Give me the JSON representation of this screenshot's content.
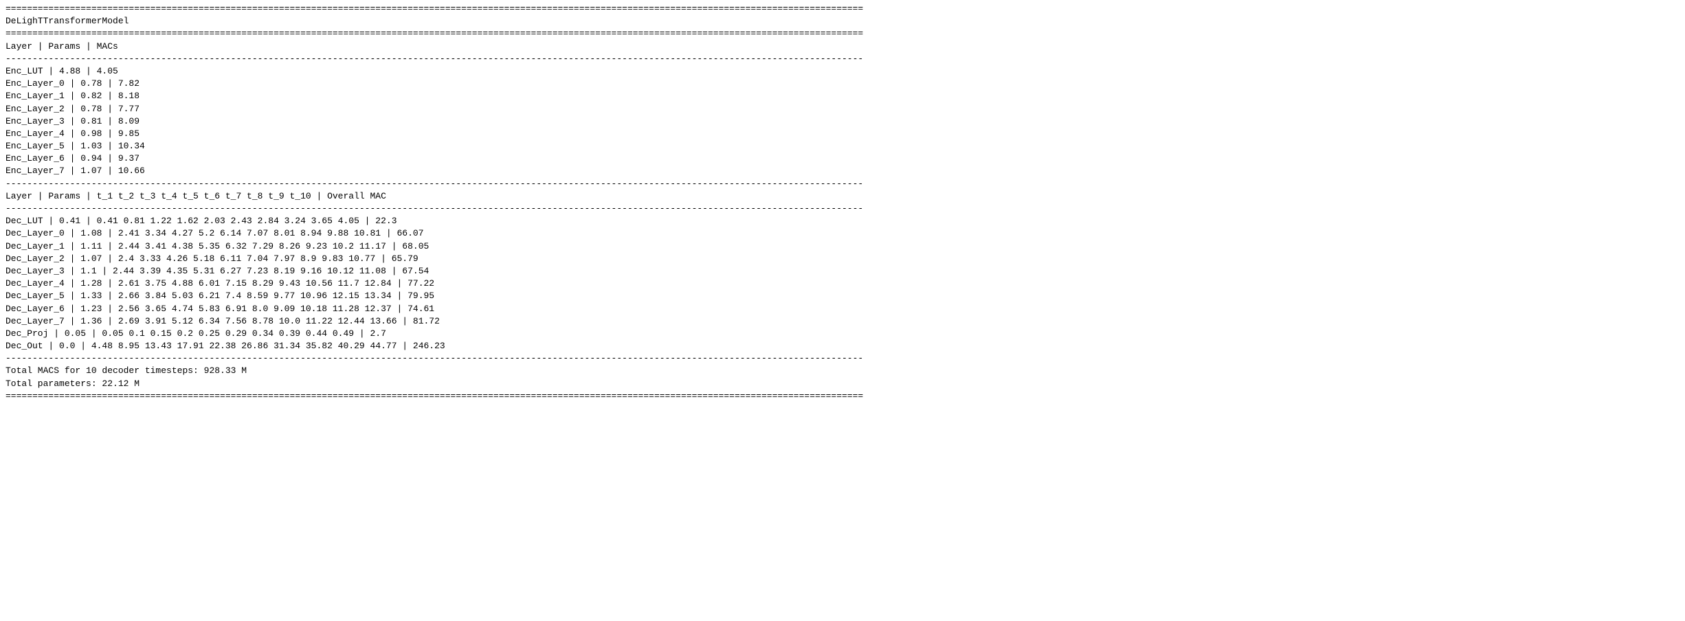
{
  "title": "DeLighTTransformerModel",
  "rule_width_chars": 160,
  "layer_col_width": 21,
  "params_col_width": 12,
  "macs_col_width": 12,
  "tcol_width": 12,
  "overall_label_left_pad": 12,
  "encoder_header": {
    "layer": "Layer",
    "params": "Params",
    "macs": "MACs"
  },
  "encoder_rows": [
    {
      "layer": "Enc_LUT",
      "params": "4.88",
      "macs": "4.05"
    },
    {
      "layer": "Enc_Layer_0",
      "params": "0.78",
      "macs": "7.82"
    },
    {
      "layer": "Enc_Layer_1",
      "params": "0.82",
      "macs": "8.18"
    },
    {
      "layer": "Enc_Layer_2",
      "params": "0.78",
      "macs": "7.77"
    },
    {
      "layer": "Enc_Layer_3",
      "params": "0.81",
      "macs": "8.09"
    },
    {
      "layer": "Enc_Layer_4",
      "params": "0.98",
      "macs": "9.85"
    },
    {
      "layer": "Enc_Layer_5",
      "params": "1.03",
      "macs": "10.34"
    },
    {
      "layer": "Enc_Layer_6",
      "params": "0.94",
      "macs": "9.37"
    },
    {
      "layer": "Enc_Layer_7",
      "params": "1.07",
      "macs": "10.66"
    }
  ],
  "decoder_header": {
    "layer": "Layer",
    "params": "Params",
    "tcols": [
      "t_1",
      "t_2",
      "t_3",
      "t_4",
      "t_5",
      "t_6",
      "t_7",
      "t_8",
      "t_9",
      "t_10"
    ],
    "overall": "Overall MAC"
  },
  "decoder_rows": [
    {
      "layer": "Dec_LUT",
      "params": "0.41",
      "t": [
        "0.41",
        "0.81",
        "1.22",
        "1.62",
        "2.03",
        "2.43",
        "2.84",
        "3.24",
        "3.65",
        "4.05"
      ],
      "overall": "22.3"
    },
    {
      "layer": "Dec_Layer_0",
      "params": "1.08",
      "t": [
        "2.41",
        "3.34",
        "4.27",
        "5.2",
        "6.14",
        "7.07",
        "8.01",
        "8.94",
        "9.88",
        "10.81"
      ],
      "overall": "66.07"
    },
    {
      "layer": "Dec_Layer_1",
      "params": "1.11",
      "t": [
        "2.44",
        "3.41",
        "4.38",
        "5.35",
        "6.32",
        "7.29",
        "8.26",
        "9.23",
        "10.2",
        "11.17"
      ],
      "overall": "68.05"
    },
    {
      "layer": "Dec_Layer_2",
      "params": "1.07",
      "t": [
        "2.4",
        "3.33",
        "4.26",
        "5.18",
        "6.11",
        "7.04",
        "7.97",
        "8.9",
        "9.83",
        "10.77"
      ],
      "overall": "65.79"
    },
    {
      "layer": "Dec_Layer_3",
      "params": "1.1",
      "t": [
        "2.44",
        "3.39",
        "4.35",
        "5.31",
        "6.27",
        "7.23",
        "8.19",
        "9.16",
        "10.12",
        "11.08"
      ],
      "overall": "67.54"
    },
    {
      "layer": "Dec_Layer_4",
      "params": "1.28",
      "t": [
        "2.61",
        "3.75",
        "4.88",
        "6.01",
        "7.15",
        "8.29",
        "9.43",
        "10.56",
        "11.7",
        "12.84"
      ],
      "overall": "77.22"
    },
    {
      "layer": "Dec_Layer_5",
      "params": "1.33",
      "t": [
        "2.66",
        "3.84",
        "5.03",
        "6.21",
        "7.4",
        "8.59",
        "9.77",
        "10.96",
        "12.15",
        "13.34"
      ],
      "overall": "79.95"
    },
    {
      "layer": "Dec_Layer_6",
      "params": "1.23",
      "t": [
        "2.56",
        "3.65",
        "4.74",
        "5.83",
        "6.91",
        "8.0",
        "9.09",
        "10.18",
        "11.28",
        "12.37"
      ],
      "overall": "74.61"
    },
    {
      "layer": "Dec_Layer_7",
      "params": "1.36",
      "t": [
        "2.69",
        "3.91",
        "5.12",
        "6.34",
        "7.56",
        "8.78",
        "10.0",
        "11.22",
        "12.44",
        "13.66"
      ],
      "overall": "81.72"
    },
    {
      "layer": "Dec_Proj",
      "params": "0.05",
      "t": [
        "0.05",
        "0.1",
        "0.15",
        "0.2",
        "0.25",
        "0.29",
        "0.34",
        "0.39",
        "0.44",
        "0.49"
      ],
      "overall": "2.7"
    },
    {
      "layer": "Dec_Out",
      "params": "0.0",
      "t": [
        "4.48",
        "8.95",
        "13.43",
        "17.91",
        "22.38",
        "26.86",
        "31.34",
        "35.82",
        "40.29",
        "44.77"
      ],
      "overall": "246.23"
    }
  ],
  "totals": {
    "macs_line": "Total MACS for 10 decoder timesteps: 928.33 M",
    "params_line": "Total parameters: 22.12 M"
  }
}
